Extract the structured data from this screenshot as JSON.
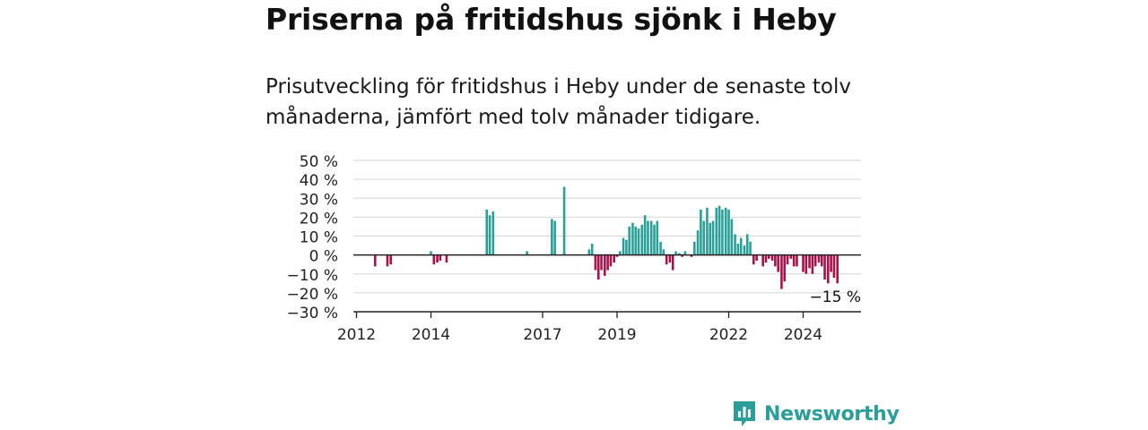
{
  "header": {
    "title": "Priserna på fritidshus sjönk i Heby",
    "subtitle": "Prisutveckling för fritidshus i Heby under de senaste tolv månaderna, jämfört med tolv månader tidigare."
  },
  "brand": {
    "name": "Newsworthy",
    "icon": "newsworthy-logo-icon",
    "color": "#2b9e98"
  },
  "chart_data": {
    "type": "bar",
    "title": "",
    "xlabel": "",
    "ylabel": "",
    "ylim": [
      -30,
      50
    ],
    "yticks": [
      50,
      40,
      30,
      20,
      10,
      0,
      -10,
      -20,
      -30
    ],
    "ytick_labels": [
      "50 %",
      "40 %",
      "30 %",
      "20 %",
      "10 %",
      "0 %",
      "−10 %",
      "−20 %",
      "−30 %"
    ],
    "xticks": [
      2012,
      2014,
      2017,
      2019,
      2022,
      2024
    ],
    "xtick_labels": [
      "2012",
      "2014",
      "2017",
      "2019",
      "2022",
      "2024"
    ],
    "grid": true,
    "positive_color": "#2aa198",
    "negative_color": "#a8124a",
    "annotation": "−15 %",
    "x": [
      2012.5,
      2012.83,
      2012.92,
      2014.0,
      2014.08,
      2014.17,
      2014.25,
      2014.42,
      2015.5,
      2015.58,
      2015.67,
      2016.58,
      2017.25,
      2017.33,
      2017.58,
      2018.25,
      2018.33,
      2018.42,
      2018.5,
      2018.58,
      2018.67,
      2018.75,
      2018.83,
      2018.92,
      2019.0,
      2019.08,
      2019.17,
      2019.25,
      2019.33,
      2019.42,
      2019.5,
      2019.58,
      2019.67,
      2019.75,
      2019.83,
      2019.92,
      2020.0,
      2020.08,
      2020.17,
      2020.25,
      2020.33,
      2020.42,
      2020.5,
      2020.58,
      2020.67,
      2020.75,
      2020.83,
      2021.0,
      2021.08,
      2021.17,
      2021.25,
      2021.33,
      2021.42,
      2021.5,
      2021.58,
      2021.67,
      2021.75,
      2021.83,
      2021.92,
      2022.0,
      2022.08,
      2022.17,
      2022.25,
      2022.33,
      2022.42,
      2022.5,
      2022.58,
      2022.67,
      2022.75,
      2022.92,
      2023.0,
      2023.08,
      2023.17,
      2023.25,
      2023.33,
      2023.42,
      2023.5,
      2023.58,
      2023.67,
      2023.75,
      2023.83,
      2024.0,
      2024.08,
      2024.17,
      2024.25,
      2024.33,
      2024.42,
      2024.5,
      2024.58,
      2024.67,
      2024.75,
      2024.83,
      2024.92
    ],
    "values": [
      -6,
      -6,
      -5,
      2,
      -5,
      -4,
      -3,
      -4,
      24,
      21,
      23,
      2,
      19,
      18,
      36,
      3,
      6,
      -8,
      -13,
      -8,
      -11,
      -8,
      -6,
      -4,
      -1,
      2,
      9,
      8,
      15,
      17,
      15,
      14,
      16,
      21,
      18,
      18,
      16,
      18,
      7,
      3,
      -5,
      -4,
      -8,
      2,
      1,
      -1,
      2,
      -1,
      7,
      13,
      24,
      18,
      25,
      17,
      18,
      25,
      26,
      24,
      25,
      24,
      19,
      11,
      6,
      9,
      5,
      11,
      7,
      -5,
      -3,
      -6,
      -4,
      -2,
      -3,
      -6,
      -9,
      -18,
      -14,
      -5,
      -2,
      -6,
      -6,
      -9,
      -10,
      -7,
      -10,
      -6,
      -4,
      -6,
      -13,
      -15,
      -9,
      -12,
      -15
    ]
  }
}
